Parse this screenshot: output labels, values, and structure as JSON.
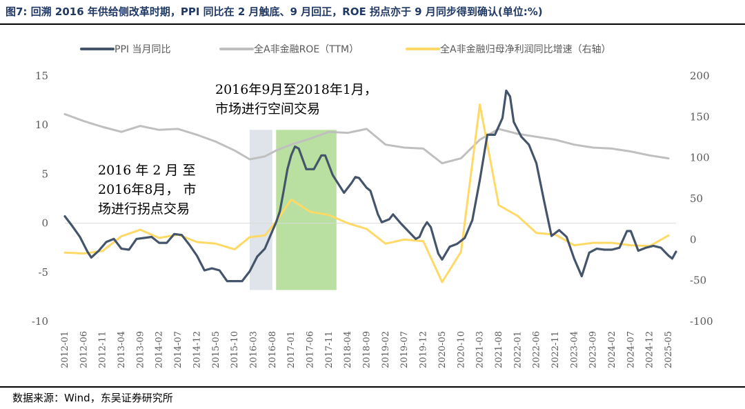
{
  "header": {
    "title": "图7: 回溯 2016 年供给侧改革时期，PPI 同比在 2 月触底、9 月回正，ROE 拐点亦于 9 月同步得到确认(单位:%)"
  },
  "footer": {
    "source": "数据来源：Wind，东吴证券研究所"
  },
  "chart_data": {
    "type": "line",
    "legend_position": "top",
    "grid": false,
    "ylim_left": [
      -10,
      15
    ],
    "yticks_left": [
      "15",
      "10",
      "5",
      "0",
      "-5",
      "-10"
    ],
    "ylim_right": [
      -100,
      200
    ],
    "yticks_right": [
      "200",
      "150",
      "100",
      "50",
      "0",
      "-50",
      "-100"
    ],
    "xtick_labels": [
      "2012-01",
      "2012-06",
      "2012-11",
      "2013-04",
      "2013-09",
      "2014-02",
      "2014-07",
      "2014-12",
      "2015-05",
      "2015-10",
      "2016-03",
      "2016-08",
      "2017-01",
      "2017-06",
      "2017-11",
      "2018-04",
      "2018-09",
      "2019-02",
      "2019-07",
      "2019-12",
      "2020-05",
      "2020-10",
      "2021-03",
      "2021-08",
      "2022-01",
      "2022-06",
      "2022-11",
      "2023-04",
      "2023-09",
      "2024-02",
      "2024-07",
      "2024-12",
      "2025-05"
    ],
    "shaded_periods": [
      {
        "start": "2016-02",
        "end": "2016-08",
        "color": "#dfe4ea"
      },
      {
        "start": "2016-09",
        "end": "2018-01",
        "color": "#b9e0a0"
      }
    ],
    "annotations": [
      {
        "lines": [
          "2016 年 2 月 至",
          "2016年8月， 市",
          "场进行拐点交易"
        ]
      },
      {
        "lines": [
          "2016年9月至2018年1月，",
          "市场进行空间交易"
        ]
      }
    ],
    "series": [
      {
        "name": "PPI 当月同比",
        "axis": "left",
        "color": "#44546a",
        "points": [
          [
            "2012-01",
            0.7
          ],
          [
            "2012-03",
            -0.3
          ],
          [
            "2012-05",
            -1.4
          ],
          [
            "2012-07",
            -2.9
          ],
          [
            "2012-08",
            -3.5
          ],
          [
            "2012-10",
            -2.8
          ],
          [
            "2012-12",
            -1.9
          ],
          [
            "2013-02",
            -1.6
          ],
          [
            "2013-04",
            -2.6
          ],
          [
            "2013-06",
            -2.7
          ],
          [
            "2013-08",
            -1.6
          ],
          [
            "2013-10",
            -1.5
          ],
          [
            "2013-12",
            -1.4
          ],
          [
            "2014-02",
            -2.0
          ],
          [
            "2014-04",
            -2.0
          ],
          [
            "2014-06",
            -1.1
          ],
          [
            "2014-08",
            -1.2
          ],
          [
            "2014-10",
            -2.2
          ],
          [
            "2014-12",
            -3.3
          ],
          [
            "2015-02",
            -4.8
          ],
          [
            "2015-04",
            -4.6
          ],
          [
            "2015-06",
            -4.8
          ],
          [
            "2015-08",
            -5.9
          ],
          [
            "2015-10",
            -5.9
          ],
          [
            "2015-12",
            -5.9
          ],
          [
            "2016-02",
            -4.9
          ],
          [
            "2016-04",
            -3.4
          ],
          [
            "2016-06",
            -2.6
          ],
          [
            "2016-08",
            -0.8
          ],
          [
            "2016-09",
            0.1
          ],
          [
            "2016-10",
            1.2
          ],
          [
            "2016-11",
            3.3
          ],
          [
            "2016-12",
            5.5
          ],
          [
            "2017-01",
            6.9
          ],
          [
            "2017-02",
            7.8
          ],
          [
            "2017-03",
            7.6
          ],
          [
            "2017-05",
            5.5
          ],
          [
            "2017-07",
            5.5
          ],
          [
            "2017-09",
            6.9
          ],
          [
            "2017-10",
            6.9
          ],
          [
            "2017-12",
            4.9
          ],
          [
            "2018-02",
            3.7
          ],
          [
            "2018-03",
            3.1
          ],
          [
            "2018-05",
            4.1
          ],
          [
            "2018-06",
            4.7
          ],
          [
            "2018-07",
            4.6
          ],
          [
            "2018-09",
            3.6
          ],
          [
            "2018-10",
            3.3
          ],
          [
            "2018-12",
            0.9
          ],
          [
            "2019-01",
            0.1
          ],
          [
            "2019-03",
            0.4
          ],
          [
            "2019-04",
            0.9
          ],
          [
            "2019-06",
            0.0
          ],
          [
            "2019-08",
            -0.8
          ],
          [
            "2019-10",
            -1.6
          ],
          [
            "2019-11",
            -1.4
          ],
          [
            "2019-12",
            -0.5
          ],
          [
            "2020-01",
            0.1
          ],
          [
            "2020-02",
            -0.4
          ],
          [
            "2020-04",
            -3.1
          ],
          [
            "2020-05",
            -3.7
          ],
          [
            "2020-07",
            -2.4
          ],
          [
            "2020-09",
            -2.1
          ],
          [
            "2020-11",
            -1.5
          ],
          [
            "2021-01",
            0.3
          ],
          [
            "2021-03",
            4.4
          ],
          [
            "2021-05",
            9.0
          ],
          [
            "2021-07",
            9.0
          ],
          [
            "2021-09",
            10.7
          ],
          [
            "2021-10",
            13.5
          ],
          [
            "2021-11",
            12.9
          ],
          [
            "2021-12",
            10.3
          ],
          [
            "2022-02",
            8.8
          ],
          [
            "2022-04",
            8.0
          ],
          [
            "2022-06",
            6.1
          ],
          [
            "2022-08",
            2.3
          ],
          [
            "2022-10",
            -1.3
          ],
          [
            "2022-12",
            -0.7
          ],
          [
            "2023-02",
            -1.4
          ],
          [
            "2023-04",
            -3.6
          ],
          [
            "2023-06",
            -5.4
          ],
          [
            "2023-08",
            -3.0
          ],
          [
            "2023-10",
            -2.6
          ],
          [
            "2023-12",
            -2.7
          ],
          [
            "2024-02",
            -2.7
          ],
          [
            "2024-04",
            -2.5
          ],
          [
            "2024-06",
            -0.8
          ],
          [
            "2024-07",
            -0.8
          ],
          [
            "2024-09",
            -2.8
          ],
          [
            "2024-11",
            -2.5
          ],
          [
            "2025-01",
            -2.3
          ],
          [
            "2025-03",
            -2.5
          ],
          [
            "2025-05",
            -3.3
          ],
          [
            "2025-06",
            -3.6
          ],
          [
            "2025-07",
            -2.9
          ]
        ]
      },
      {
        "name": "全A非金融ROE（TTM）",
        "axis": "left",
        "color": "#bfbfbf",
        "points": [
          [
            "2012-01",
            11.1
          ],
          [
            "2012-06",
            10.4
          ],
          [
            "2012-11",
            9.8
          ],
          [
            "2013-04",
            9.3
          ],
          [
            "2013-09",
            9.9
          ],
          [
            "2014-02",
            9.5
          ],
          [
            "2014-07",
            9.6
          ],
          [
            "2014-12",
            9.0
          ],
          [
            "2015-05",
            8.3
          ],
          [
            "2015-10",
            7.4
          ],
          [
            "2016-02",
            6.5
          ],
          [
            "2016-06",
            6.8
          ],
          [
            "2016-09",
            7.4
          ],
          [
            "2017-01",
            8.0
          ],
          [
            "2017-06",
            8.6
          ],
          [
            "2017-11",
            9.3
          ],
          [
            "2018-04",
            9.2
          ],
          [
            "2018-09",
            9.6
          ],
          [
            "2019-02",
            8.0
          ],
          [
            "2019-07",
            7.7
          ],
          [
            "2019-12",
            7.6
          ],
          [
            "2020-05",
            6.1
          ],
          [
            "2020-10",
            6.6
          ],
          [
            "2021-03",
            8.5
          ],
          [
            "2021-08",
            9.6
          ],
          [
            "2022-01",
            9.1
          ],
          [
            "2022-06",
            8.8
          ],
          [
            "2022-11",
            8.5
          ],
          [
            "2023-04",
            8.0
          ],
          [
            "2023-09",
            7.7
          ],
          [
            "2024-02",
            7.6
          ],
          [
            "2024-07",
            7.3
          ],
          [
            "2024-12",
            6.9
          ],
          [
            "2025-05",
            6.6
          ]
        ]
      },
      {
        "name": "全A非金融归母净利润同比增速（右轴）",
        "axis": "right",
        "color": "#ffd966",
        "points": [
          [
            "2012-01",
            -16
          ],
          [
            "2012-06",
            -17
          ],
          [
            "2012-11",
            -14
          ],
          [
            "2013-04",
            4
          ],
          [
            "2013-09",
            12
          ],
          [
            "2014-02",
            2
          ],
          [
            "2014-07",
            6
          ],
          [
            "2014-12",
            -3
          ],
          [
            "2015-05",
            -5
          ],
          [
            "2015-10",
            -12
          ],
          [
            "2016-02",
            3
          ],
          [
            "2016-06",
            5
          ],
          [
            "2016-09",
            22
          ],
          [
            "2017-01",
            49
          ],
          [
            "2017-06",
            34
          ],
          [
            "2017-11",
            30
          ],
          [
            "2018-04",
            20
          ],
          [
            "2018-09",
            13
          ],
          [
            "2019-02",
            -5
          ],
          [
            "2019-07",
            0
          ],
          [
            "2019-12",
            -2
          ],
          [
            "2020-05",
            -52
          ],
          [
            "2020-10",
            -15
          ],
          [
            "2021-03",
            165
          ],
          [
            "2021-08",
            42
          ],
          [
            "2022-01",
            29
          ],
          [
            "2022-06",
            8
          ],
          [
            "2022-11",
            6
          ],
          [
            "2023-04",
            -7
          ],
          [
            "2023-09",
            -4
          ],
          [
            "2024-02",
            -4
          ],
          [
            "2024-07",
            -7
          ],
          [
            "2024-12",
            -8
          ],
          [
            "2025-05",
            5
          ]
        ]
      }
    ]
  }
}
